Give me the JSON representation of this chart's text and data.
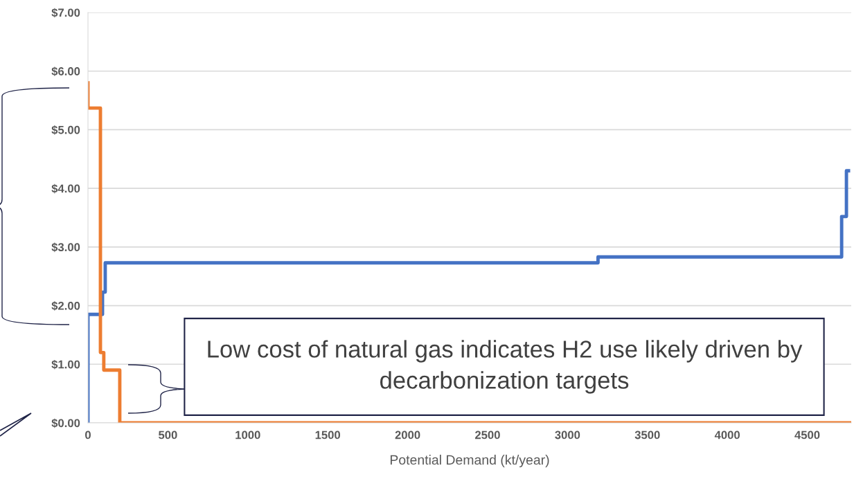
{
  "chart_data": {
    "type": "step",
    "xlabel": "Potential Demand (kt/year)",
    "xlim": [
      0,
      4775
    ],
    "xticks": [
      0,
      500,
      1000,
      1500,
      2000,
      2500,
      3000,
      3500,
      4000,
      4500
    ],
    "ylim": [
      0,
      7
    ],
    "yticks": [
      {
        "value": 0,
        "label": "$0.00"
      },
      {
        "value": 1,
        "label": "$1.00"
      },
      {
        "value": 2,
        "label": "$2.00"
      },
      {
        "value": 3,
        "label": "$3.00"
      },
      {
        "value": 4,
        "label": "$4.00"
      },
      {
        "value": 5,
        "label": "$5.00"
      },
      {
        "value": 6,
        "label": "$6.00"
      },
      {
        "value": 7,
        "label": "$7.00"
      }
    ],
    "grid": "y",
    "legend": false,
    "series": [
      {
        "color": "#4472c4",
        "x": [
          0,
          0,
          91,
          108,
          3191,
          4715,
          4745,
          4758
        ],
        "values": [
          0,
          1.85,
          2.23,
          2.73,
          2.83,
          3.52,
          4.3,
          4.3
        ]
      },
      {
        "color": "#ed7d31",
        "x": [
          0,
          0,
          78,
          99,
          199,
          4775
        ],
        "values": [
          5.8,
          5.37,
          1.2,
          0.9,
          0,
          0
        ]
      }
    ],
    "annotations": [
      "Low cost of natural gas indicates H2 use likely driven by decarbonization targets"
    ]
  }
}
